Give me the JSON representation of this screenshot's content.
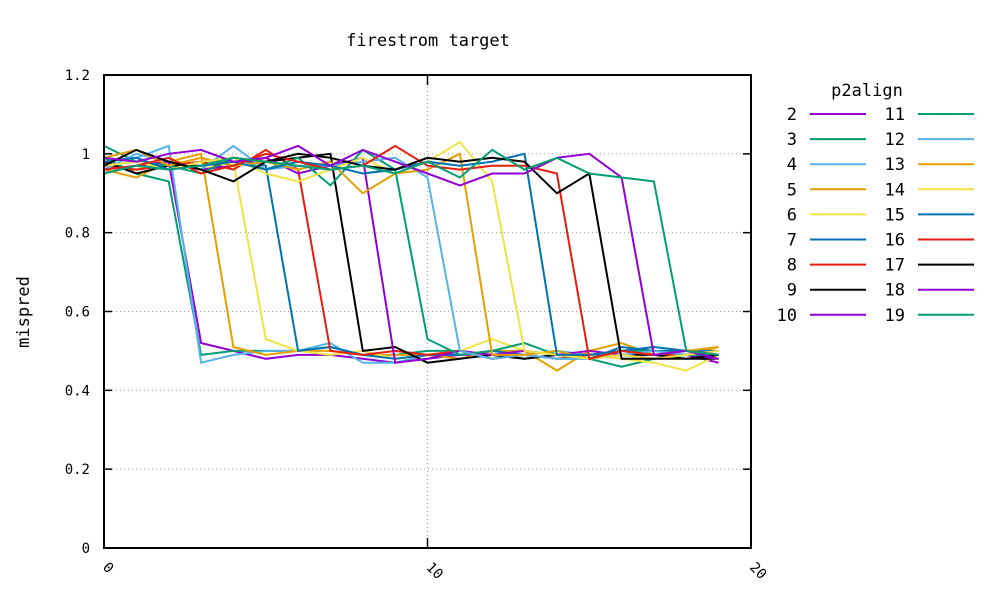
{
  "chart_data": {
    "type": "line",
    "title": "firestrom target",
    "xlabel": "",
    "ylabel": "mispred",
    "xlim": [
      0,
      20
    ],
    "ylim": [
      0,
      1.2
    ],
    "xticks": [
      0,
      10,
      20
    ],
    "yticks": [
      0,
      0.2,
      0.4,
      0.6,
      0.8,
      1,
      1.2
    ],
    "xtick_labels": [
      "0",
      "10",
      "20"
    ],
    "ytick_labels": [
      "0",
      "0.2",
      "0.4",
      "0.6",
      "0.8",
      "1",
      "1.2"
    ],
    "grid": true,
    "legend_title": "p2align",
    "legend_placement": "right",
    "x": [
      0,
      1,
      2,
      3,
      4,
      5,
      6,
      7,
      8,
      9,
      10,
      11,
      12,
      13,
      14,
      15,
      16,
      17,
      18,
      19
    ],
    "series": [
      {
        "name": "2",
        "color": "#9400d3",
        "values": [
          0.97,
          0.96,
          0.98,
          0.52,
          0.5,
          0.48,
          0.49,
          0.49,
          0.48,
          0.47,
          0.48,
          0.49,
          0.49,
          0.48,
          0.49,
          0.48,
          0.49,
          0.48,
          0.49,
          0.47
        ]
      },
      {
        "name": "3",
        "color": "#009e73",
        "values": [
          0.99,
          0.95,
          0.93,
          0.49,
          0.5,
          0.5,
          0.5,
          0.51,
          0.49,
          0.49,
          0.5,
          0.5,
          0.49,
          0.48,
          0.49,
          0.48,
          0.46,
          0.48,
          0.49,
          0.5
        ]
      },
      {
        "name": "4",
        "color": "#56b4e9",
        "values": [
          0.98,
          0.99,
          1.02,
          0.47,
          0.49,
          0.5,
          0.5,
          0.52,
          0.47,
          0.47,
          0.49,
          0.49,
          0.5,
          0.49,
          0.5,
          0.49,
          0.5,
          0.5,
          0.49,
          0.49
        ]
      },
      {
        "name": "5",
        "color": "#e69f00",
        "values": [
          0.96,
          0.94,
          0.98,
          1.0,
          0.51,
          0.49,
          0.5,
          0.5,
          0.49,
          0.49,
          0.49,
          0.48,
          0.5,
          0.5,
          0.45,
          0.5,
          0.52,
          0.49,
          0.49,
          0.51
        ]
      },
      {
        "name": "6",
        "color": "#f0e442",
        "values": [
          0.97,
          0.96,
          0.99,
          0.96,
          0.98,
          0.53,
          0.5,
          0.49,
          0.5,
          0.48,
          0.49,
          0.5,
          0.53,
          0.5,
          0.49,
          0.49,
          0.48,
          0.47,
          0.45,
          0.49
        ]
      },
      {
        "name": "7",
        "color": "#0072b2",
        "values": [
          0.99,
          0.98,
          0.97,
          0.98,
          0.99,
          0.97,
          0.5,
          0.51,
          0.49,
          0.48,
          0.49,
          0.49,
          0.5,
          0.49,
          0.48,
          0.48,
          0.51,
          0.5,
          0.5,
          0.5
        ]
      },
      {
        "name": "8",
        "color": "#e51e10",
        "values": [
          0.97,
          0.96,
          0.97,
          0.98,
          0.96,
          1.01,
          0.96,
          0.5,
          0.49,
          0.5,
          0.49,
          0.5,
          0.48,
          0.49,
          0.48,
          0.49,
          0.5,
          0.49,
          0.49,
          0.49
        ]
      },
      {
        "name": "9",
        "color": "#000000",
        "values": [
          0.98,
          0.95,
          0.97,
          0.97,
          0.99,
          0.98,
          0.99,
          1.0,
          0.5,
          0.51,
          0.47,
          0.48,
          0.49,
          0.48,
          0.49,
          0.48,
          0.49,
          0.49,
          0.48,
          0.48
        ]
      },
      {
        "name": "10",
        "color": "#9400d3",
        "values": [
          0.96,
          0.97,
          0.98,
          0.96,
          0.97,
          0.99,
          0.95,
          0.97,
          0.99,
          0.47,
          0.48,
          0.5,
          0.49,
          0.5,
          0.49,
          0.5,
          0.49,
          0.48,
          0.49,
          0.48
        ]
      },
      {
        "name": "11",
        "color": "#009e73",
        "values": [
          1.02,
          0.98,
          0.97,
          0.95,
          0.99,
          0.96,
          0.99,
          0.92,
          1.01,
          0.96,
          0.53,
          0.49,
          0.5,
          0.52,
          0.49,
          0.48,
          0.5,
          0.5,
          0.49,
          0.49
        ]
      },
      {
        "name": "12",
        "color": "#56b4e9",
        "values": [
          0.96,
          1.0,
          0.98,
          0.96,
          1.02,
          0.96,
          0.97,
          0.97,
          0.98,
          0.99,
          0.94,
          0.5,
          0.48,
          0.49,
          0.48,
          0.48,
          0.49,
          0.5,
          0.49,
          0.5
        ]
      },
      {
        "name": "13",
        "color": "#e69f00",
        "values": [
          0.99,
          1.01,
          0.97,
          0.99,
          0.97,
          0.98,
          0.96,
          0.98,
          0.9,
          0.95,
          0.96,
          1.0,
          0.49,
          0.49,
          0.5,
          0.48,
          0.5,
          0.49,
          0.5,
          0.51
        ]
      },
      {
        "name": "14",
        "color": "#f0e442",
        "values": [
          0.97,
          0.98,
          0.96,
          0.98,
          0.99,
          0.95,
          0.93,
          0.96,
          0.99,
          0.95,
          0.98,
          1.03,
          0.93,
          0.5,
          0.49,
          0.48,
          0.49,
          0.48,
          0.49,
          0.5
        ]
      },
      {
        "name": "15",
        "color": "#0072b2",
        "values": [
          0.98,
          0.99,
          0.96,
          0.97,
          0.98,
          0.96,
          0.98,
          0.97,
          0.95,
          0.96,
          0.98,
          0.97,
          0.98,
          1.0,
          0.49,
          0.49,
          0.5,
          0.51,
          0.5,
          0.49
        ]
      },
      {
        "name": "16",
        "color": "#e51e10",
        "values": [
          0.96,
          0.97,
          0.99,
          0.95,
          0.97,
          1.0,
          0.98,
          0.96,
          0.97,
          1.02,
          0.97,
          0.96,
          0.97,
          0.97,
          0.95,
          0.48,
          0.5,
          0.49,
          0.5,
          0.49
        ]
      },
      {
        "name": "17",
        "color": "#000000",
        "values": [
          0.97,
          1.01,
          0.98,
          0.96,
          0.93,
          0.98,
          1.0,
          0.99,
          0.97,
          0.96,
          0.99,
          0.98,
          0.99,
          0.98,
          0.9,
          0.95,
          0.48,
          0.48,
          0.48,
          0.49
        ]
      },
      {
        "name": "18",
        "color": "#9400d3",
        "values": [
          0.99,
          0.98,
          1.0,
          1.01,
          0.98,
          0.99,
          1.02,
          0.97,
          1.01,
          0.98,
          0.95,
          0.92,
          0.95,
          0.95,
          0.99,
          1.0,
          0.94,
          0.49,
          0.5,
          0.48
        ]
      },
      {
        "name": "19",
        "color": "#009e73",
        "values": [
          0.95,
          0.97,
          0.96,
          0.97,
          0.99,
          0.98,
          0.97,
          0.96,
          0.97,
          0.95,
          0.98,
          0.94,
          1.01,
          0.96,
          0.99,
          0.95,
          0.94,
          0.93,
          0.5,
          0.49
        ]
      }
    ]
  }
}
